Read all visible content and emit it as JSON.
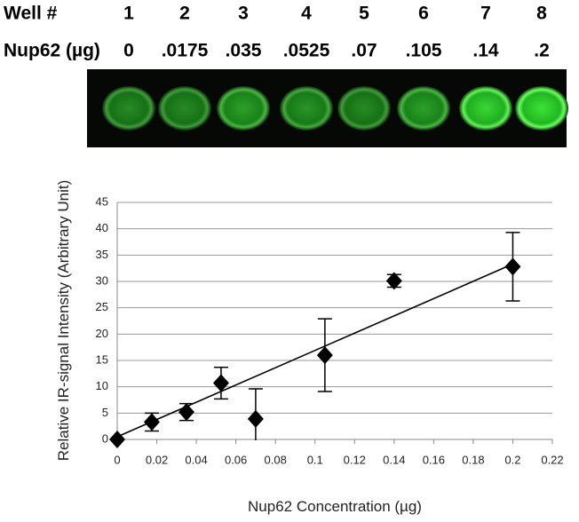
{
  "header": {
    "rows": [
      {
        "label": "Well #",
        "cells": [
          "1",
          "2",
          "3",
          "4",
          "5",
          "6",
          "7",
          "8"
        ]
      },
      {
        "label": "Nup62 (µg)",
        "cells": [
          "0",
          ".0175",
          ".035",
          ".0525",
          ".07",
          ".105",
          ".14",
          ".2"
        ]
      }
    ]
  },
  "chart_data": {
    "type": "scatter",
    "x_label": "Nup62 Concentration (µg)",
    "y_label": "Relative IR-signal Intensity (Arbitrary Unit)",
    "x": [
      0,
      0.0175,
      0.035,
      0.0525,
      0.07,
      0.105,
      0.14,
      0.2
    ],
    "values": [
      0,
      3.3,
      5.2,
      10.7,
      3.9,
      16,
      30.1,
      32.8
    ],
    "errors": [
      null,
      1.7,
      1.6,
      3,
      5.7,
      6.9,
      1.2,
      6.5
    ],
    "trendline": {
      "x": [
        0,
        0.2
      ],
      "values": [
        0.5,
        33.3
      ]
    },
    "color": "#000000",
    "xlim": [
      0,
      0.22
    ],
    "xticks": [
      0,
      0.02,
      0.04,
      0.06,
      0.08,
      0.1,
      0.12,
      0.14,
      0.16,
      0.18,
      0.2,
      0.22
    ],
    "ylim": [
      0,
      45
    ],
    "yticks": [
      0,
      5,
      10,
      15,
      20,
      25,
      30,
      35,
      40,
      45
    ],
    "grid": true
  }
}
